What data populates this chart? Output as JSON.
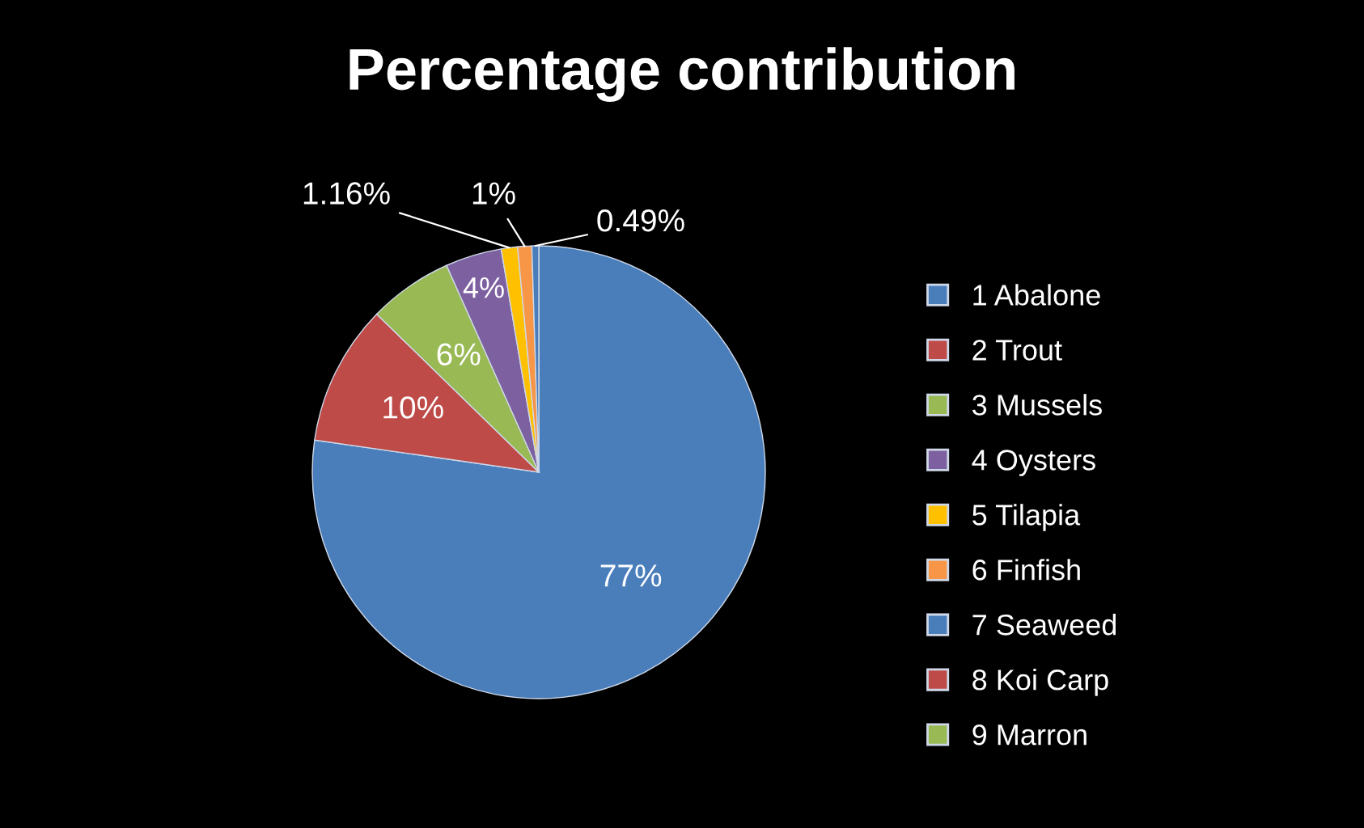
{
  "chart_data": {
    "type": "pie",
    "title": "Percentage contribution",
    "categories": [
      "1 Abalone",
      "2 Trout",
      "3 Mussels",
      "4 Oysters",
      "5 Tilapia",
      "6 Finfish",
      "7 Seaweed",
      "8 Koi Carp",
      "9 Marron"
    ],
    "values": [
      77,
      10,
      6,
      4,
      1.16,
      1,
      0.49,
      null,
      null
    ],
    "value_labels": [
      "77%",
      "10%",
      "6%",
      "4%",
      "1.16%",
      "1%",
      "0.49%",
      null,
      null
    ],
    "colors": [
      "#4a7ebb",
      "#be4b48",
      "#98b954",
      "#7d60a0",
      "#ffc000",
      "#f79646",
      "#4a7ebb",
      "#be4b48",
      "#98b954"
    ],
    "legend": "right"
  }
}
